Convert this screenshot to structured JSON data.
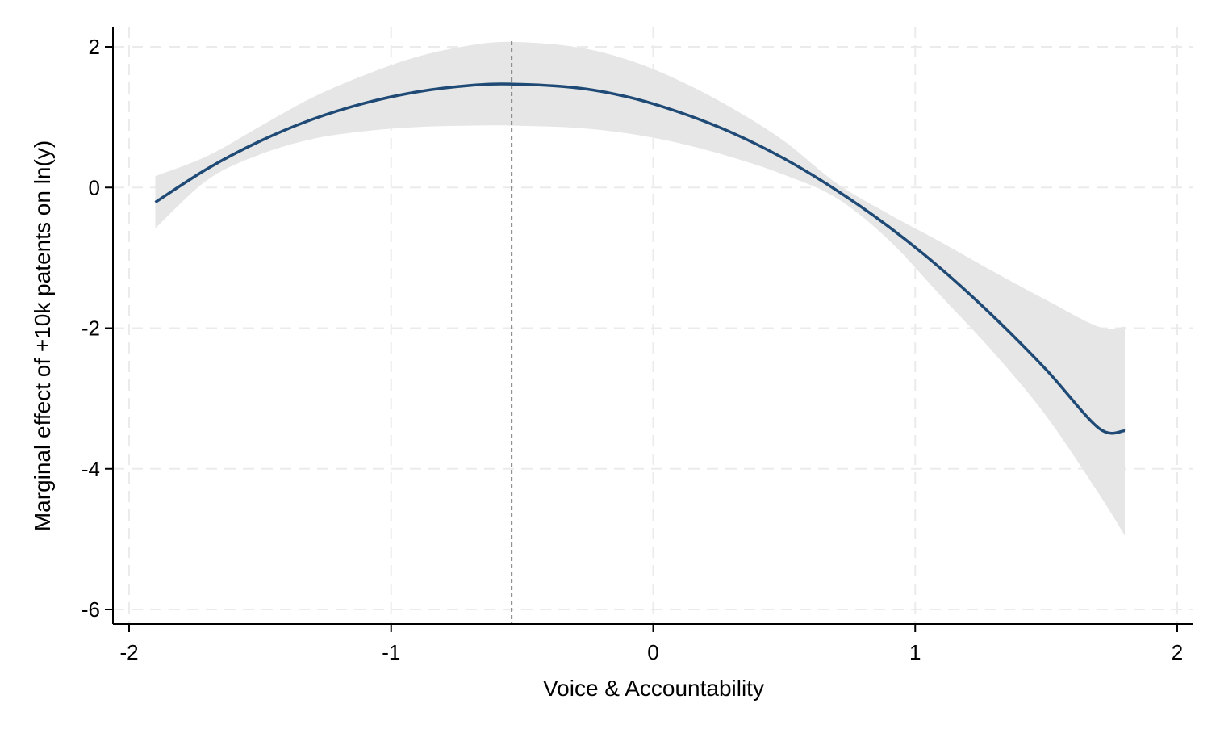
{
  "chart_data": {
    "type": "line",
    "title": "",
    "xlabel": "Voice & Accountability",
    "ylabel": "Marginal effect of +10k patents on ln(y)",
    "xlim": [
      -2,
      2
    ],
    "ylim": [
      -6,
      2
    ],
    "x_ticks": [
      -2,
      -1,
      0,
      1,
      2
    ],
    "x_tick_labels": [
      "-2",
      "-1",
      "0",
      "1",
      "2"
    ],
    "y_ticks": [
      -6,
      -4,
      -2,
      0,
      2
    ],
    "y_tick_labels": [
      "-6",
      "-4",
      "-2",
      "0",
      "2"
    ],
    "grid": true,
    "reference_line_x": -0.54,
    "series": [
      {
        "x": [
          -1.9,
          -1.7,
          -1.5,
          -1.3,
          -1.1,
          -0.9,
          -0.7,
          -0.54,
          -0.3,
          -0.1,
          0.1,
          0.3,
          0.5,
          0.7,
          0.9,
          1.1,
          1.3,
          1.5,
          1.7,
          1.8
        ],
        "y": [
          -0.21,
          0.27,
          0.66,
          0.97,
          1.2,
          1.36,
          1.45,
          1.47,
          1.42,
          1.29,
          1.07,
          0.78,
          0.41,
          -0.04,
          -0.56,
          -1.16,
          -1.84,
          -2.59,
          -3.42,
          -3.46
        ],
        "ci_lower": [
          -0.58,
          0.11,
          0.47,
          0.69,
          0.8,
          0.86,
          0.88,
          0.88,
          0.85,
          0.77,
          0.63,
          0.43,
          0.18,
          -0.15,
          -0.75,
          -1.55,
          -2.35,
          -3.25,
          -4.35,
          -4.95
        ],
        "ci_upper": [
          0.16,
          0.45,
          0.87,
          1.28,
          1.6,
          1.86,
          2.02,
          2.07,
          2.0,
          1.82,
          1.52,
          1.13,
          0.66,
          0.06,
          -0.38,
          -0.78,
          -1.2,
          -1.6,
          -1.98,
          -1.98
        ]
      }
    ],
    "colors": {
      "line": "#1f4a75",
      "band": "#e6e6e6",
      "grid": "#ebebeb",
      "reference_line": "#808080",
      "axis": "#000000"
    }
  }
}
